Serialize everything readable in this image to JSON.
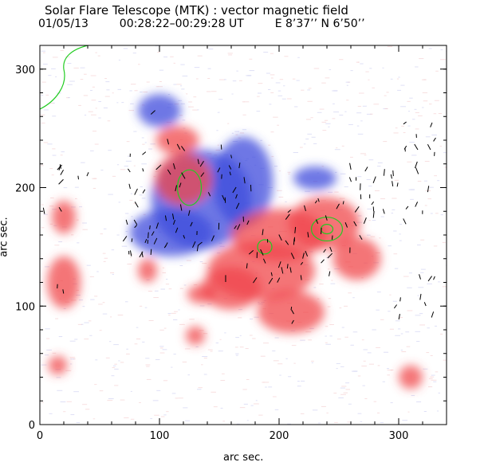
{
  "figure": {
    "title": "Solar Flare Telescope (MTK) : vector magnetic field",
    "date": "01/05/13",
    "time_range": "00:28:22–00:29:28 UT",
    "position": "E 8’37’’  N 6’50’’",
    "xlabel": "arc sec.",
    "ylabel": "arc sec.",
    "xticks": [
      "0",
      "100",
      "200",
      "300"
    ],
    "yticks": [
      "0",
      "100",
      "200",
      "300"
    ],
    "xlim": [
      0,
      340
    ],
    "ylim": [
      0,
      320
    ]
  },
  "colors": {
    "positive": "#f0464b",
    "negative": "#3c4bdc",
    "contour": "#22cc22",
    "vectors": "#000000"
  },
  "regions": [
    {
      "pol": "neg",
      "cx": 135,
      "cy": 190,
      "rx": 42,
      "ry": 42
    },
    {
      "pol": "neg",
      "cx": 110,
      "cy": 162,
      "rx": 35,
      "ry": 20
    },
    {
      "pol": "neg",
      "cx": 170,
      "cy": 205,
      "rx": 25,
      "ry": 38
    },
    {
      "pol": "neg",
      "cx": 100,
      "cy": 265,
      "rx": 18,
      "ry": 14
    },
    {
      "pol": "neg",
      "cx": 230,
      "cy": 208,
      "rx": 18,
      "ry": 10
    },
    {
      "pol": "pos",
      "cx": 120,
      "cy": 207,
      "rx": 24,
      "ry": 22
    },
    {
      "pol": "pos",
      "cx": 115,
      "cy": 240,
      "rx": 18,
      "ry": 12
    },
    {
      "pol": "pos",
      "cx": 238,
      "cy": 170,
      "rx": 30,
      "ry": 22
    },
    {
      "pol": "pos",
      "cx": 200,
      "cy": 160,
      "rx": 40,
      "ry": 22
    },
    {
      "pol": "pos",
      "cx": 185,
      "cy": 130,
      "rx": 45,
      "ry": 25
    },
    {
      "pol": "pos",
      "cx": 210,
      "cy": 95,
      "rx": 28,
      "ry": 18
    },
    {
      "pol": "pos",
      "cx": 160,
      "cy": 115,
      "rx": 25,
      "ry": 18
    },
    {
      "pol": "pos",
      "cx": 20,
      "cy": 120,
      "rx": 14,
      "ry": 22
    },
    {
      "pol": "pos",
      "cx": 20,
      "cy": 175,
      "rx": 10,
      "ry": 14
    },
    {
      "pol": "pos",
      "cx": 90,
      "cy": 130,
      "rx": 8,
      "ry": 10
    },
    {
      "pol": "pos",
      "cx": 265,
      "cy": 140,
      "rx": 20,
      "ry": 18
    },
    {
      "pol": "pos",
      "cx": 310,
      "cy": 40,
      "rx": 10,
      "ry": 10
    },
    {
      "pol": "pos",
      "cx": 135,
      "cy": 110,
      "rx": 12,
      "ry": 8
    },
    {
      "pol": "pos",
      "cx": 130,
      "cy": 75,
      "rx": 8,
      "ry": 8
    },
    {
      "pol": "pos",
      "cx": 15,
      "cy": 50,
      "rx": 8,
      "ry": 8
    }
  ],
  "contours": [
    {
      "cx": 125,
      "cy": 200,
      "rx": 10,
      "ry": 15
    },
    {
      "cx": 240,
      "cy": 165,
      "rx": 13,
      "ry": 10
    },
    {
      "cx": 240,
      "cy": 165,
      "rx": 5,
      "ry": 4
    },
    {
      "cx": 188,
      "cy": 150,
      "rx": 6,
      "ry": 6
    }
  ]
}
